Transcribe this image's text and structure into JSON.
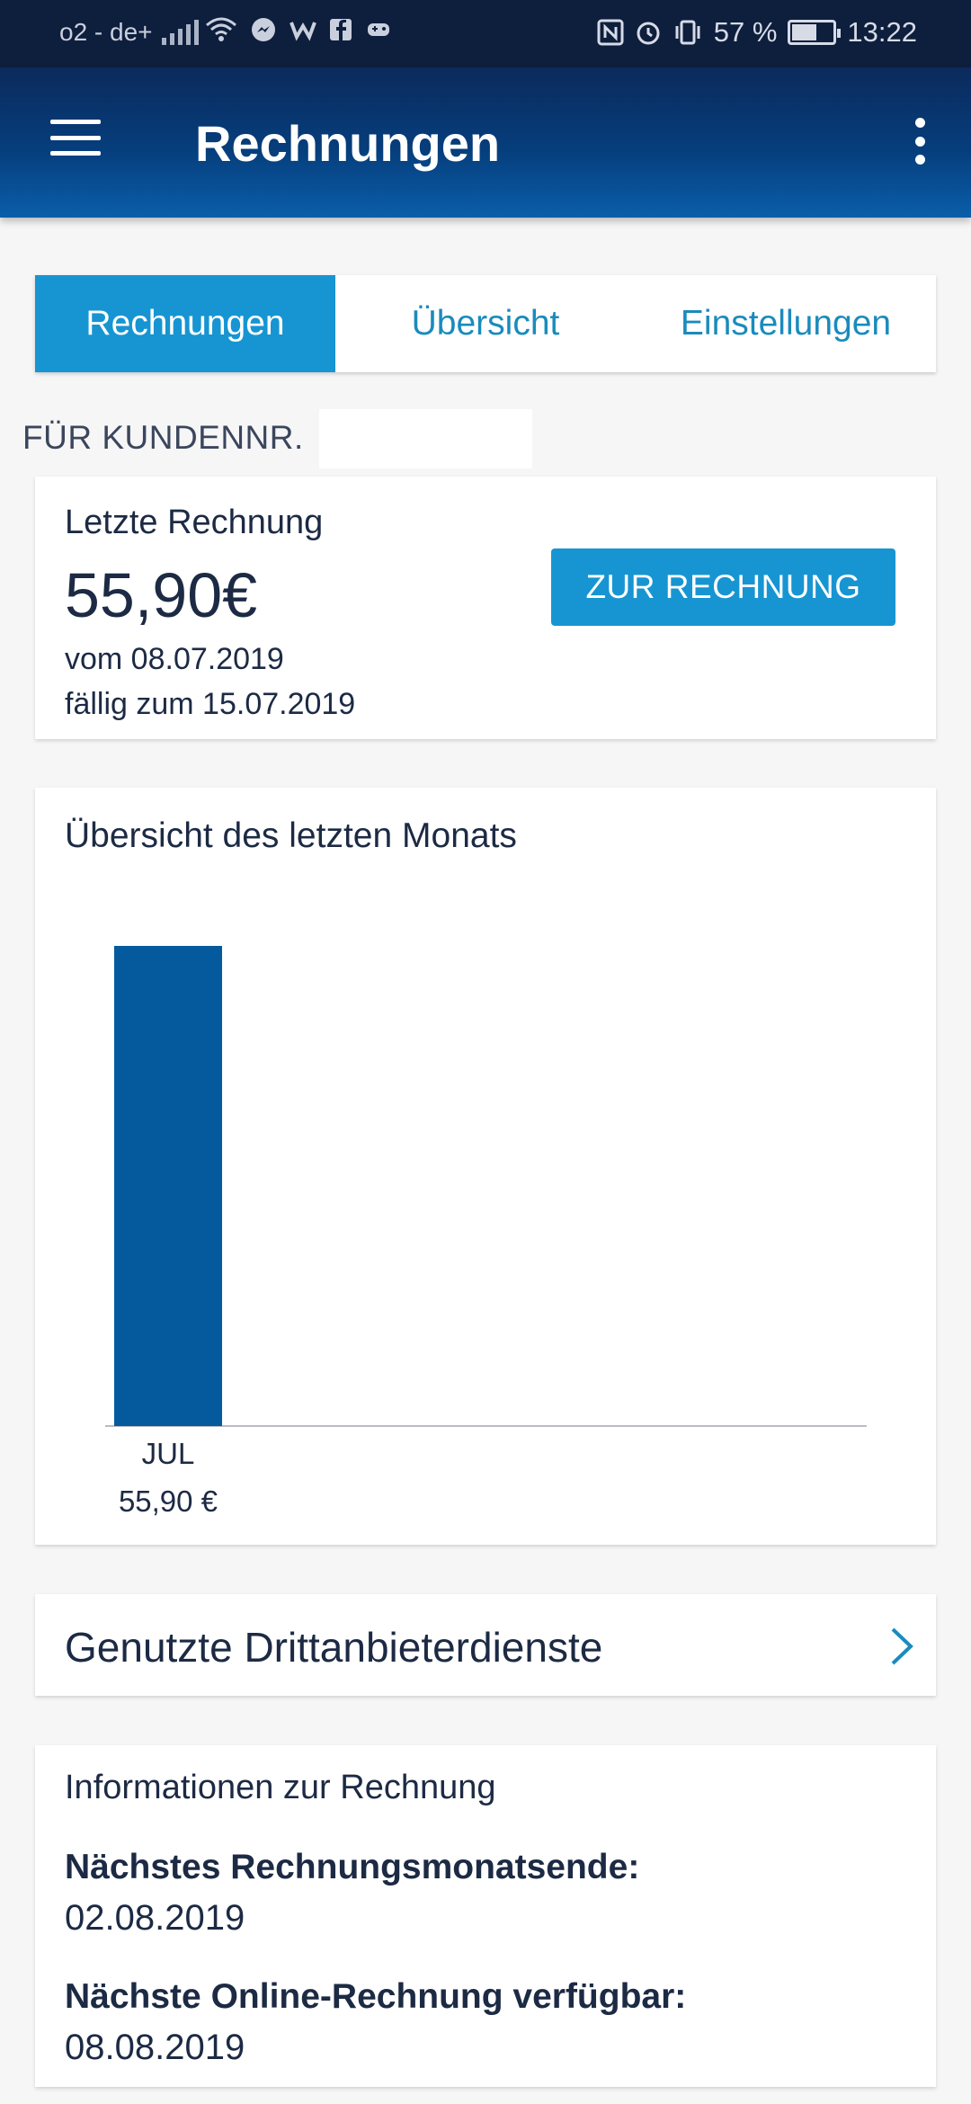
{
  "status_bar": {
    "carrier": "o2 - de+",
    "battery": "57 %",
    "time": "13:22"
  },
  "app_bar": {
    "title": "Rechnungen"
  },
  "tabs": [
    {
      "label": "Rechnungen",
      "active": true
    },
    {
      "label": "Übersicht",
      "active": false
    },
    {
      "label": "Einstellungen",
      "active": false
    }
  ],
  "customer": {
    "label": "FÜR KUNDENNR."
  },
  "last_invoice": {
    "label": "Letzte Rechnung",
    "amount": "55,90€",
    "date": "vom 08.07.2019",
    "due": "fällig zum 15.07.2019",
    "button": "ZUR RECHNUNG"
  },
  "overview": {
    "title": "Übersicht des letzten Monats"
  },
  "chart_data": {
    "type": "bar",
    "categories": [
      "JUL"
    ],
    "values": [
      55.9
    ],
    "value_labels": [
      "55,90 €"
    ],
    "title": "Übersicht des letzten Monats",
    "color": "#055a9e"
  },
  "third_party": {
    "label": "Genutzte Drittanbieterdienste"
  },
  "info": {
    "title": "Informationen zur Rechnung",
    "next_end_label": "Nächstes Rechnungsmonatsende:",
    "next_end_value": "02.08.2019",
    "next_online_label": "Nächste Online-Rechnung verfügbar:",
    "next_online_value": "08.08.2019"
  },
  "colors": {
    "accent": "#1795d2",
    "header": "#063e7c",
    "text": "#1c2a44",
    "bar": "#055a9e"
  }
}
